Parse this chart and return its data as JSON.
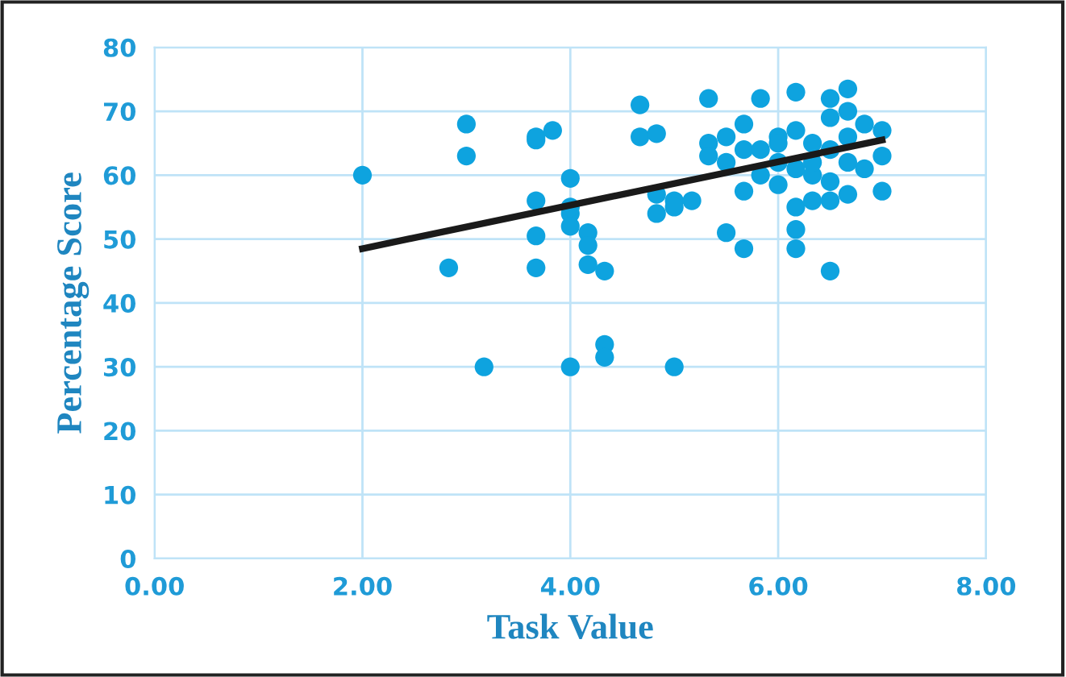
{
  "chart_data": {
    "type": "scatter",
    "xlabel": "Task Value",
    "ylabel": "Percentage Score",
    "xlim": [
      0,
      8
    ],
    "ylim": [
      0,
      80
    ],
    "xticks": [
      {
        "value": 0,
        "label": "0.00"
      },
      {
        "value": 2,
        "label": "2.00"
      },
      {
        "value": 4,
        "label": "4.00"
      },
      {
        "value": 6,
        "label": "6.00"
      },
      {
        "value": 8,
        "label": "8.00"
      }
    ],
    "yticks": [
      0,
      10,
      20,
      30,
      40,
      50,
      60,
      70,
      80
    ],
    "grid": true,
    "marker": "circle",
    "series": [
      {
        "color": "#0ea3df",
        "x": [
          2.0,
          2.83,
          3.0,
          3.0,
          3.17,
          3.67,
          3.67,
          3.83,
          3.67,
          3.67,
          3.67,
          4.0,
          4.0,
          4.0,
          4.0,
          4.17,
          4.17,
          4.33,
          4.33,
          4.33,
          4.0,
          4.17,
          4.67,
          4.67,
          4.83,
          4.83,
          4.83,
          5.0,
          5.0,
          5.0,
          5.17,
          5.33,
          5.33,
          5.33,
          5.5,
          5.5,
          5.5,
          5.67,
          5.67,
          5.67,
          5.67,
          5.83,
          5.83,
          6.0,
          6.0,
          6.0,
          6.17,
          6.17,
          6.17,
          6.17,
          6.17,
          6.17,
          6.33,
          6.33,
          6.33,
          6.5,
          6.5,
          6.5,
          6.5,
          6.5,
          6.5,
          6.67,
          6.67,
          6.67,
          6.67,
          6.67,
          6.83,
          6.83,
          7.0,
          7.0,
          7.0,
          6.0,
          5.83,
          6.33
        ],
        "values": [
          60,
          45.5,
          68,
          63,
          30,
          65.5,
          66,
          67,
          56,
          50.5,
          45.5,
          59.5,
          30,
          54,
          52,
          51,
          46,
          45,
          33.5,
          31.5,
          55,
          49,
          71,
          66,
          66.5,
          57,
          54,
          56,
          55,
          30,
          56,
          72,
          65,
          63,
          51,
          66,
          62,
          68,
          64,
          57.5,
          48.5,
          72,
          64,
          66,
          62,
          58.5,
          73,
          67,
          61,
          55,
          51.5,
          48.5,
          65,
          60,
          56,
          72,
          69,
          64,
          59,
          56,
          45,
          73.5,
          70,
          66,
          62,
          57,
          68,
          61,
          67,
          63,
          57.5,
          65,
          60,
          62
        ]
      },
      {
        "type": "line",
        "color": "#1a1a1a",
        "x": [
          2.0,
          7.0
        ],
        "values": [
          48.5,
          65.5
        ],
        "marker": "none",
        "line_style": "solid"
      }
    ]
  }
}
